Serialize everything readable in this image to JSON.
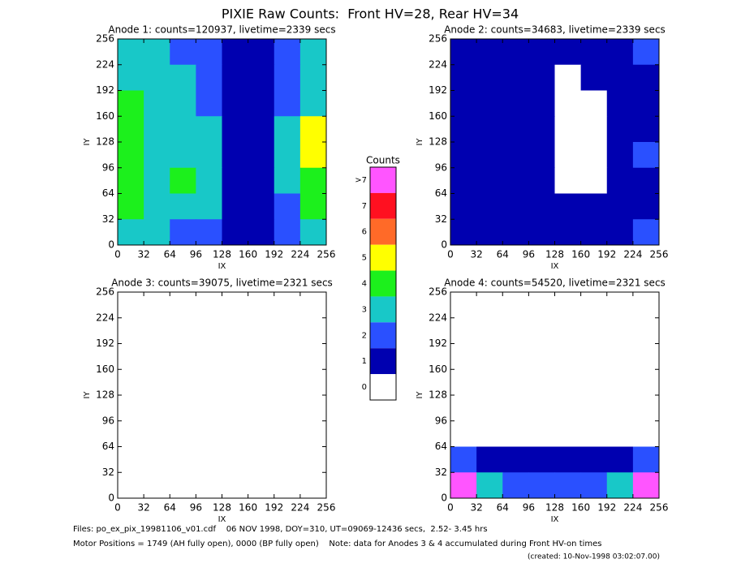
{
  "title": "PIXIE Raw Counts:  Front HV=28, Rear HV=34",
  "axes": {
    "xlabel": "IX",
    "ylabel": "IY",
    "xlim": [
      0,
      256
    ],
    "ylim": [
      0,
      256
    ],
    "xticks": [
      0,
      32,
      64,
      96,
      128,
      160,
      192,
      224,
      256
    ],
    "yticks": [
      0,
      32,
      64,
      96,
      128,
      160,
      192,
      224,
      256
    ]
  },
  "panels": [
    {
      "title": "Anode 1: counts=120937, livetime=2339 secs",
      "grid": [
        [
          3,
          3,
          2,
          2,
          1,
          1,
          2,
          3
        ],
        [
          3,
          3,
          3,
          2,
          1,
          1,
          2,
          3
        ],
        [
          4,
          3,
          3,
          2,
          1,
          1,
          2,
          3
        ],
        [
          4,
          3,
          3,
          3,
          1,
          1,
          3,
          5
        ],
        [
          4,
          3,
          3,
          3,
          1,
          1,
          3,
          5
        ],
        [
          4,
          3,
          4,
          3,
          1,
          1,
          3,
          4
        ],
        [
          4,
          3,
          3,
          3,
          1,
          1,
          2,
          4
        ],
        [
          3,
          3,
          2,
          2,
          1,
          1,
          2,
          3
        ]
      ]
    },
    {
      "title": "Anode 2: counts=34683, livetime=2339 secs",
      "grid": [
        [
          1,
          1,
          1,
          1,
          1,
          1,
          1,
          2
        ],
        [
          1,
          1,
          1,
          1,
          0,
          1,
          1,
          1
        ],
        [
          1,
          1,
          1,
          1,
          0,
          0,
          1,
          1
        ],
        [
          1,
          1,
          1,
          1,
          0,
          0,
          1,
          1
        ],
        [
          1,
          1,
          1,
          1,
          0,
          0,
          1,
          2
        ],
        [
          1,
          1,
          1,
          1,
          0,
          0,
          1,
          1
        ],
        [
          1,
          1,
          1,
          1,
          1,
          1,
          1,
          1
        ],
        [
          1,
          1,
          1,
          1,
          1,
          1,
          1,
          2
        ]
      ]
    },
    {
      "title": "Anode 3: counts=39075, livetime=2321 secs",
      "grid": [
        [
          0,
          0,
          0,
          0,
          0,
          0,
          0,
          0
        ],
        [
          0,
          0,
          0,
          0,
          0,
          0,
          0,
          0
        ],
        [
          0,
          0,
          0,
          0,
          0,
          0,
          0,
          0
        ],
        [
          0,
          0,
          0,
          0,
          0,
          0,
          0,
          0
        ],
        [
          0,
          0,
          0,
          0,
          0,
          0,
          0,
          0
        ],
        [
          0,
          0,
          0,
          0,
          0,
          0,
          0,
          0
        ],
        [
          0,
          0,
          0,
          0,
          0,
          0,
          0,
          0
        ],
        [
          0,
          0,
          0,
          0,
          0,
          0,
          0,
          0
        ]
      ]
    },
    {
      "title": "Anode 4: counts=54520, livetime=2321 secs",
      "grid": [
        [
          0,
          0,
          0,
          0,
          0,
          0,
          0,
          0
        ],
        [
          0,
          0,
          0,
          0,
          0,
          0,
          0,
          0
        ],
        [
          0,
          0,
          0,
          0,
          0,
          0,
          0,
          0
        ],
        [
          0,
          0,
          0,
          0,
          0,
          0,
          0,
          0
        ],
        [
          0,
          0,
          0,
          0,
          0,
          0,
          0,
          0
        ],
        [
          0,
          0,
          0,
          0,
          0,
          0,
          0,
          0
        ],
        [
          2,
          1,
          1,
          1,
          1,
          1,
          1,
          2
        ],
        [
          8,
          3,
          2,
          2,
          2,
          2,
          3,
          8
        ]
      ]
    }
  ],
  "colorbar": {
    "title": "Counts",
    "levels": [
      {
        "label": ">7",
        "color": "#ff55ff"
      },
      {
        "label": "7",
        "color": "#ff1020"
      },
      {
        "label": "6",
        "color": "#ff6a28"
      },
      {
        "label": "5",
        "color": "#ffff00"
      },
      {
        "label": "4",
        "color": "#1cf01c"
      },
      {
        "label": "3",
        "color": "#18c8c8"
      },
      {
        "label": "2",
        "color": "#2a50ff"
      },
      {
        "label": "1",
        "color": "#0000b0"
      },
      {
        "label": "0",
        "color": "#ffffff"
      }
    ]
  },
  "footer": [
    "Files: po_ex_pix_19981106_v01.cdf    06 NOV 1998, DOY=310, UT=09069-12436 secs,  2.52- 3.45 hrs",
    "Motor Positions = 1749 (AH fully open), 0000 (BP fully open)    Note: data for Anodes 3 & 4 accumulated during Front HV-on times",
    "(created: 10-Nov-1998 03:02:07.00)"
  ]
}
